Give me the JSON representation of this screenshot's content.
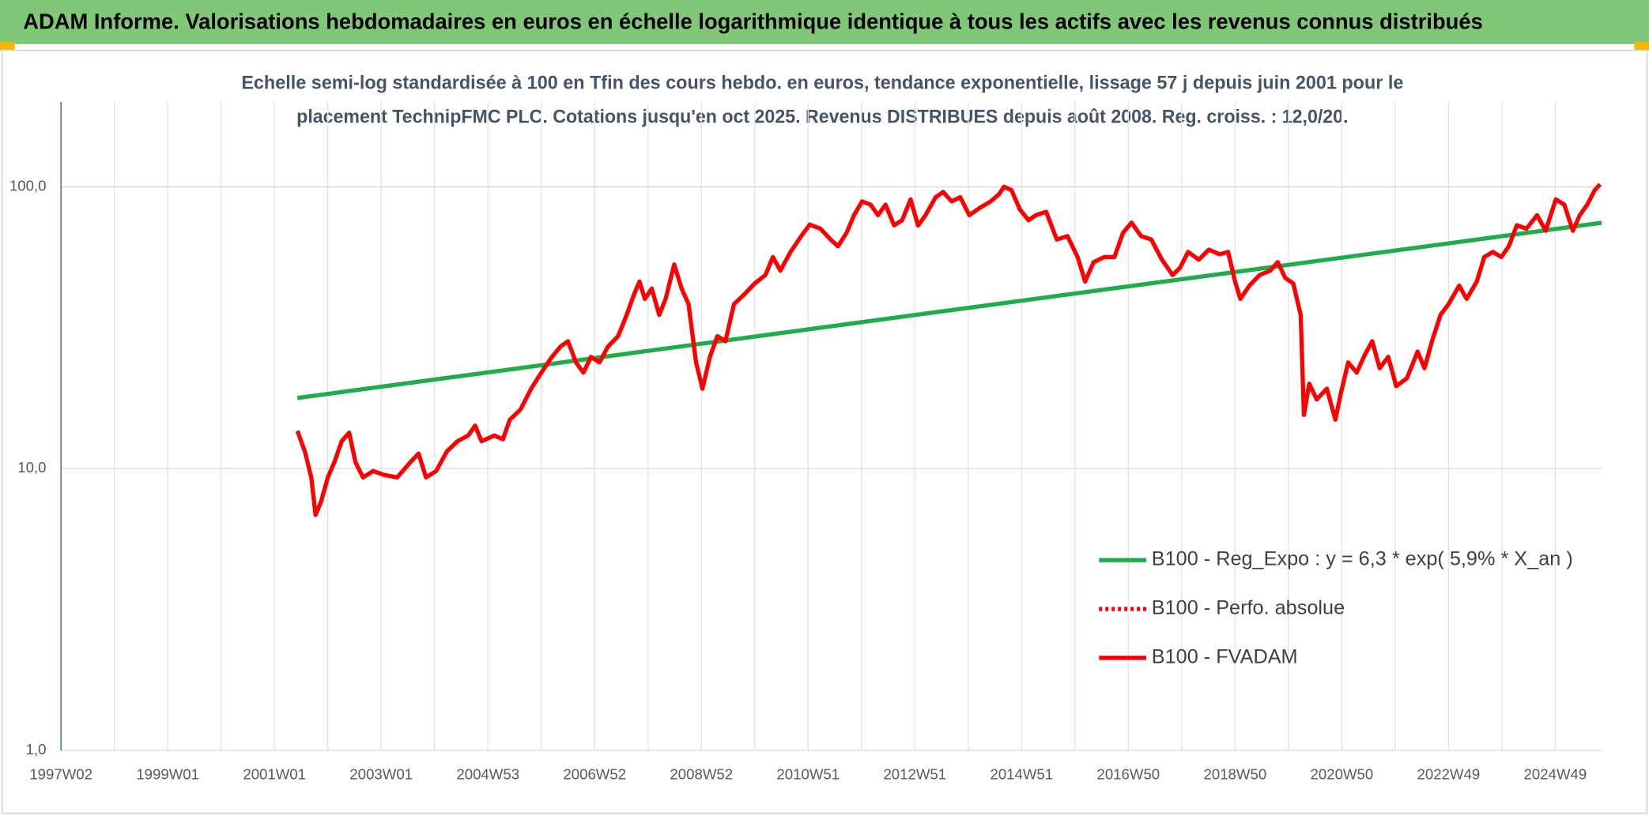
{
  "chart_data": {
    "type": "line",
    "title": "ADAM Informe. Valorisations hebdomadaires en euros en échelle logarithmique identique à tous les actifs avec les revenus connus distribués",
    "subtitle": [
      "Echelle semi-log standardisée à 100 en Tfin des cours hebdo. en euros, tendance exponentielle, lissage 57 j depuis juin 2001 pour le",
      "placement TechnipFMC PLC. Cotations jusqu'en oct 2025. Revenus DISTRIBUES depuis août 2008. Reg. croiss. : 12,0/20."
    ],
    "ylog": true,
    "ylim": [
      1,
      200
    ],
    "yticks": [
      {
        "value": 1,
        "label": "1,0"
      },
      {
        "value": 10,
        "label": "10,0"
      },
      {
        "value": 100,
        "label": "100,0"
      }
    ],
    "xlim": [
      1997,
      2025.87
    ],
    "xticks": [
      {
        "value": 1997,
        "label": "1997W02"
      },
      {
        "value": 1999,
        "label": "1999W01"
      },
      {
        "value": 2001,
        "label": "2001W01"
      },
      {
        "value": 2003,
        "label": "2003W01"
      },
      {
        "value": 2005,
        "label": "2004W53"
      },
      {
        "value": 2007,
        "label": "2006W52"
      },
      {
        "value": 2009,
        "label": "2008W52"
      },
      {
        "value": 2011,
        "label": "2010W51"
      },
      {
        "value": 2013,
        "label": "2012W51"
      },
      {
        "value": 2015,
        "label": "2014W51"
      },
      {
        "value": 2017,
        "label": "2016W50"
      },
      {
        "value": 2019,
        "label": "2018W50"
      },
      {
        "value": 2021,
        "label": "2020W50"
      },
      {
        "value": 2023,
        "label": "2022W49"
      },
      {
        "value": 2025,
        "label": "2024W49"
      }
    ],
    "xminorticks": [
      1998,
      2000,
      2002,
      2004,
      2006,
      2008,
      2010,
      2012,
      2014,
      2016,
      2018,
      2020,
      2022,
      2024
    ],
    "grid": true,
    "legend": "bottom-right",
    "series": [
      {
        "name": "B100 - Reg_Expo : y = 6,3 * exp( 5,9% *  X_an )",
        "color": "#1fad4b",
        "dash": "solid",
        "x": [
          2001.43,
          2025.87
        ],
        "values": [
          17.8,
          74.5
        ]
      },
      {
        "name": "B100 - Perfo. absolue",
        "color": "#ff0000",
        "dash": "dotted",
        "x": [],
        "values": []
      },
      {
        "name": "B100 - FVADAM",
        "color": "#ff0000",
        "dash": "solid",
        "x": [
          2001.43,
          2001.57,
          2001.69,
          2001.77,
          2001.87,
          2002.0,
          2002.12,
          2002.26,
          2002.4,
          2002.52,
          2002.66,
          2002.85,
          2003.05,
          2003.3,
          2003.54,
          2003.7,
          2003.84,
          2004.03,
          2004.23,
          2004.43,
          2004.63,
          2004.76,
          2004.88,
          2005.12,
          2005.28,
          2005.41,
          2005.61,
          2005.81,
          2006.0,
          2006.2,
          2006.36,
          2006.5,
          2006.65,
          2006.79,
          2006.93,
          2007.09,
          2007.25,
          2007.44,
          2007.6,
          2007.74,
          2007.84,
          2007.94,
          2008.07,
          2008.21,
          2008.33,
          2008.49,
          2008.63,
          2008.76,
          2008.9,
          2009.02,
          2009.16,
          2009.3,
          2009.45,
          2009.61,
          2009.81,
          2010.0,
          2010.2,
          2010.34,
          2010.48,
          2010.67,
          2010.87,
          2011.03,
          2011.23,
          2011.42,
          2011.56,
          2011.72,
          2011.86,
          2012.01,
          2012.17,
          2012.31,
          2012.45,
          2012.61,
          2012.76,
          2012.92,
          2013.06,
          2013.2,
          2013.39,
          2013.53,
          2013.69,
          2013.85,
          2014.02,
          2014.22,
          2014.42,
          2014.58,
          2014.67,
          2014.81,
          2014.97,
          2015.13,
          2015.27,
          2015.46,
          2015.66,
          2015.86,
          2016.05,
          2016.19,
          2016.35,
          2016.55,
          2016.74,
          2016.9,
          2017.06,
          2017.24,
          2017.43,
          2017.63,
          2017.83,
          2017.97,
          2018.12,
          2018.32,
          2018.51,
          2018.71,
          2018.87,
          2019.0,
          2019.1,
          2019.27,
          2019.46,
          2019.66,
          2019.8,
          2019.94,
          2020.09,
          2020.23,
          2020.29,
          2020.39,
          2020.53,
          2020.72,
          2020.88,
          2020.98,
          2021.12,
          2021.28,
          2021.43,
          2021.57,
          2021.71,
          2021.87,
          2022.02,
          2022.22,
          2022.42,
          2022.55,
          2022.69,
          2022.85,
          2023.0,
          2023.2,
          2023.34,
          2023.53,
          2023.67,
          2023.83,
          2023.99,
          2024.13,
          2024.28,
          2024.46,
          2024.66,
          2024.82,
          2025.01,
          2025.17,
          2025.33,
          2025.46,
          2025.6,
          2025.74,
          2025.84
        ],
        "values": [
          13.6,
          11.5,
          9.3,
          6.85,
          7.6,
          9.3,
          10.5,
          12.5,
          13.4,
          10.5,
          9.3,
          9.8,
          9.5,
          9.3,
          10.5,
          11.3,
          9.3,
          9.8,
          11.5,
          12.5,
          13.1,
          14.2,
          12.5,
          13.1,
          12.7,
          14.9,
          16.2,
          19.2,
          21.9,
          24.9,
          27.1,
          28.3,
          23.8,
          21.9,
          24.9,
          23.8,
          27.1,
          29.5,
          35.1,
          41.6,
          46.1,
          40,
          43.5,
          35.1,
          40,
          53,
          43.5,
          38.3,
          23.8,
          19.2,
          24.9,
          29.5,
          28.3,
          38.3,
          41.6,
          45.4,
          48.6,
          56.3,
          50.4,
          58.7,
          66.8,
          73.4,
          71,
          65,
          61.5,
          68.6,
          79.3,
          88.7,
          86.4,
          79.3,
          86.4,
          73,
          76,
          90.2,
          72.8,
          79.3,
          91.8,
          95.8,
          88.7,
          91.8,
          79.3,
          84.2,
          88.7,
          94.2,
          100,
          97.3,
          82.9,
          76.1,
          79.3,
          81.5,
          65,
          66.8,
          56.3,
          46.1,
          54,
          56.3,
          56.3,
          68.6,
          74.6,
          66.8,
          65,
          55.1,
          48.6,
          51.6,
          58.7,
          55.1,
          59.8,
          57.6,
          58.7,
          46.1,
          40,
          44.6,
          48.6,
          50.4,
          54,
          47.5,
          45.4,
          35.1,
          15.5,
          20,
          17.6,
          19.2,
          14.9,
          18.4,
          23.8,
          21.9,
          25.3,
          28.3,
          22.7,
          24.9,
          19.6,
          20.9,
          26,
          22.7,
          28.3,
          35.1,
          38.3,
          44.6,
          40,
          46.1,
          56.3,
          58.7,
          56.3,
          61.5,
          73,
          71,
          79.3,
          69.8,
          90.2,
          86.4,
          69.8,
          79.3,
          86.4,
          97.3,
          102
        ]
      }
    ]
  }
}
